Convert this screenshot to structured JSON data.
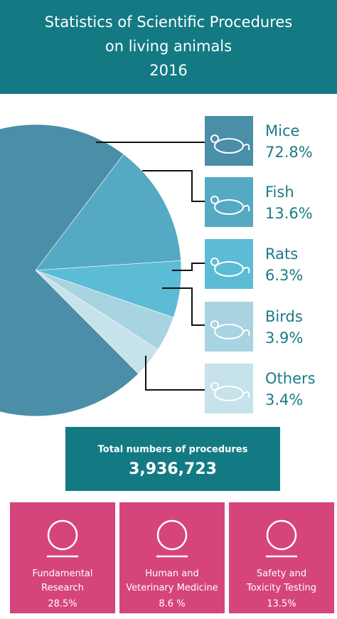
{
  "chart_data": {
    "type": "pie",
    "title": "Statistics of Scientific Procedures",
    "subtitle": "on living animals",
    "year": "2016",
    "categories": [
      "Mice",
      "Fish",
      "Rats",
      "Birds",
      "Others"
    ],
    "values": [
      72.8,
      13.6,
      6.3,
      3.9,
      3.4
    ],
    "value_labels": [
      "72.8%",
      "13.6%",
      "6.3%",
      "3.9%",
      "3.4%"
    ],
    "colors": [
      "#4b8ea7",
      "#55a9c3",
      "#5cbbd5",
      "#a8d3e1",
      "#c6e2eb"
    ]
  },
  "total": {
    "label": "Total numbers of procedures",
    "value": "3,936,723"
  },
  "purposes": [
    {
      "label": "Fundamental Research",
      "value": "28.5%"
    },
    {
      "label": "Human and Veterinary Medicine",
      "value": "8.6 %"
    },
    {
      "label": "Safety and Toxicity Testing",
      "value": "13.5%"
    }
  ]
}
